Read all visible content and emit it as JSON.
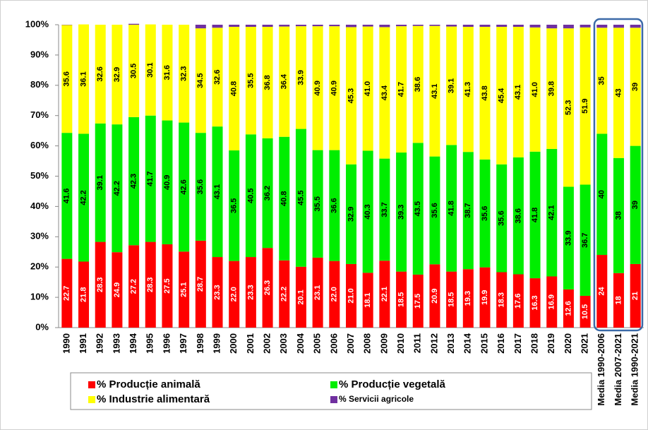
{
  "chart_data": {
    "type": "stacked_bar",
    "categories": [
      "1990",
      "1991",
      "1992",
      "1993",
      "1994",
      "1995",
      "1996",
      "1997",
      "1998",
      "1999",
      "2000",
      "2001",
      "2002",
      "2003",
      "2004",
      "2005",
      "2006",
      "2007",
      "2008",
      "2009",
      "2010",
      "2011",
      "2012",
      "2013",
      "2014",
      "2015",
      "2016",
      "2017",
      "2018",
      "2019",
      "2020",
      "2021",
      "Media 1990-2006",
      "Media 2007-2021",
      "Media 1990-2021"
    ],
    "series": [
      {
        "name": "% Producție animală",
        "color": "#ff0000",
        "values": [
          22.7,
          21.8,
          28.3,
          24.9,
          27.2,
          28.3,
          27.5,
          25.1,
          28.7,
          23.3,
          22.0,
          23.3,
          26.3,
          22.2,
          20.1,
          23.1,
          22.0,
          21.0,
          18.1,
          22.1,
          18.5,
          17.5,
          20.9,
          18.5,
          19.3,
          19.9,
          18.3,
          17.6,
          16.3,
          16.9,
          12.6,
          10.5,
          24,
          18,
          21
        ],
        "value_labels": [
          "22.7",
          "21.8",
          "28.3",
          "24.9",
          "27.2",
          "28.3",
          "27.5",
          "25.1",
          "28.7",
          "23.3",
          "22.0",
          "23.3",
          "26.3",
          "22.2",
          "20.1",
          "23.1",
          "22.0",
          "21.0",
          "18.1",
          "22.1",
          "18.5",
          "17.5",
          "20.9",
          "18.5",
          "19.3",
          "19.9",
          "18.3",
          "17.6",
          "16.3",
          "16.9",
          "12.6",
          "10.5",
          "24",
          "18",
          "21"
        ]
      },
      {
        "name": "% Producție vegetală",
        "color": "#00ee00",
        "values": [
          41.6,
          42.2,
          39.1,
          42.2,
          42.3,
          41.7,
          40.9,
          42.6,
          35.6,
          43.1,
          36.5,
          40.5,
          36.2,
          40.8,
          45.5,
          35.5,
          36.6,
          32.9,
          40.3,
          33.7,
          39.3,
          43.5,
          35.6,
          41.8,
          38.7,
          35.6,
          35.6,
          38.6,
          41.8,
          42.1,
          33.9,
          36.7,
          40,
          38,
          39
        ],
        "value_labels": [
          "41.6",
          "42.2",
          "39.1",
          "42.2",
          "42.3",
          "41.7",
          "40.9",
          "42.6",
          "35.6",
          "43.1",
          "36.5",
          "40.5",
          "36.2",
          "40.8",
          "45.5",
          "35.5",
          "36.6",
          "32.9",
          "40.3",
          "33.7",
          "39.3",
          "43.5",
          "35.6",
          "41.8",
          "38.7",
          "35.6",
          "35.6",
          "38.6",
          "41.8",
          "42.1",
          "33.9",
          "36.7",
          "40",
          "38",
          "39"
        ]
      },
      {
        "name": "% Industrie alimentară",
        "color": "#ffff00",
        "values": [
          35.6,
          36.1,
          32.6,
          32.9,
          30.5,
          30.1,
          31.6,
          32.3,
          34.5,
          32.6,
          40.8,
          35.5,
          36.8,
          36.4,
          33.9,
          40.9,
          40.9,
          45.3,
          41.0,
          43.4,
          41.7,
          38.6,
          43.1,
          39.1,
          41.3,
          43.8,
          45.4,
          43.1,
          41.0,
          39.8,
          52.3,
          51.9,
          35,
          43,
          39
        ],
        "value_labels": [
          "35.6",
          "36.1",
          "32.6",
          "32.9",
          "30.5",
          "30.1",
          "31.6",
          "32.3",
          "34.5",
          "32.6",
          "40.8",
          "35.5",
          "36.8",
          "36.4",
          "33.9",
          "40.9",
          "40.9",
          "45.3",
          "41.0",
          "43.4",
          "41.7",
          "38.6",
          "43.1",
          "39.1",
          "41.3",
          "43.8",
          "45.4",
          "43.1",
          "41.0",
          "39.8",
          "52.3",
          "51.9",
          "35",
          "43",
          "39"
        ]
      },
      {
        "name": "% Servicii agricole",
        "color": "#7030a0",
        "values": [
          0.1,
          0,
          0,
          0,
          0.3,
          0,
          0,
          0,
          1.2,
          1.0,
          0.7,
          0.7,
          0.7,
          0.6,
          0.5,
          0.5,
          0.5,
          0.8,
          0.6,
          0.8,
          0.5,
          0.4,
          0.4,
          0.6,
          0.7,
          0.7,
          0.7,
          0.7,
          0.9,
          1.2,
          1.2,
          0.9,
          1,
          1,
          1
        ]
      }
    ],
    "ylim": [
      0,
      100
    ],
    "yticks": [
      {
        "value": 0,
        "label": "0%"
      },
      {
        "value": 10,
        "label": "10%"
      },
      {
        "value": 20,
        "label": "20%"
      },
      {
        "value": 30,
        "label": "30%"
      },
      {
        "value": 40,
        "label": "40%"
      },
      {
        "value": 50,
        "label": "50%"
      },
      {
        "value": 60,
        "label": "60%"
      },
      {
        "value": 70,
        "label": "70%"
      },
      {
        "value": 80,
        "label": "80%"
      },
      {
        "value": 90,
        "label": "90%"
      },
      {
        "value": 100,
        "label": "100%"
      }
    ],
    "grid": false
  }
}
